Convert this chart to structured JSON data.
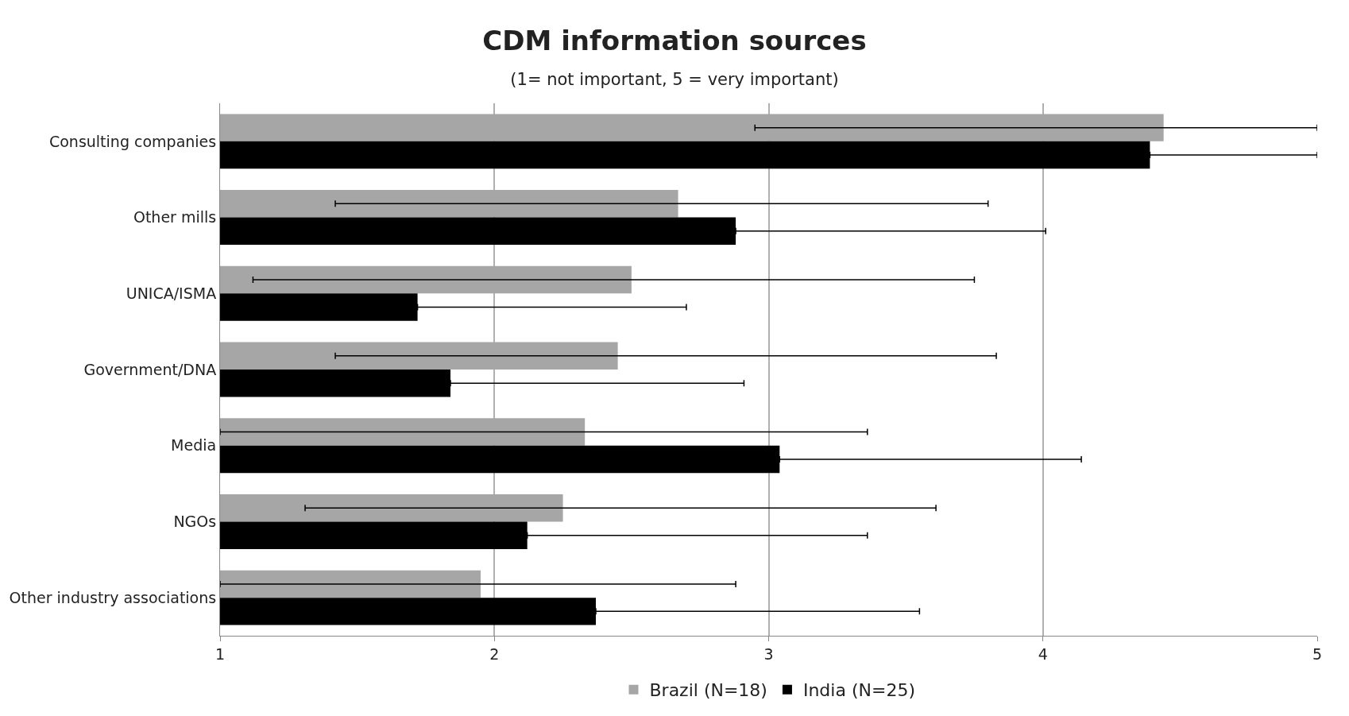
{
  "chart_data": {
    "type": "bar",
    "orientation": "horizontal",
    "title": "CDM information sources",
    "subtitle": "(1= not important, 5 = very important)",
    "categories": [
      "Consulting companies",
      "Other mills",
      "UNICA/ISMA",
      "Government/DNA",
      "Media",
      "NGOs",
      "Other industry associations"
    ],
    "series": [
      {
        "name": "Brazil (N=18)",
        "color": "#a6a6a6",
        "values": [
          4.44,
          2.67,
          2.5,
          2.45,
          2.33,
          2.25,
          1.95
        ],
        "errors": [
          [
            2.95,
            5
          ],
          [
            1.42,
            3.8
          ],
          [
            1.12,
            3.75
          ],
          [
            1.42,
            3.83
          ],
          [
            1,
            3.36
          ],
          [
            1.31,
            3.61
          ],
          [
            1,
            2.88
          ]
        ]
      },
      {
        "name": "India (N=25)",
        "color": "#000000",
        "values": [
          4.39,
          2.88,
          1.72,
          1.84,
          3.04,
          2.12,
          2.37
        ],
        "errors": [
          [
            4.39,
            5
          ],
          [
            2.88,
            4.01
          ],
          [
            1.72,
            2.7
          ],
          [
            1.84,
            2.91
          ],
          [
            3.04,
            4.14
          ],
          [
            2.12,
            3.36
          ],
          [
            2.37,
            3.55
          ]
        ]
      }
    ],
    "xlim": [
      1,
      5
    ],
    "xticks": [
      1,
      2,
      3,
      4,
      5
    ],
    "grid": "x",
    "legend": "bottom"
  }
}
